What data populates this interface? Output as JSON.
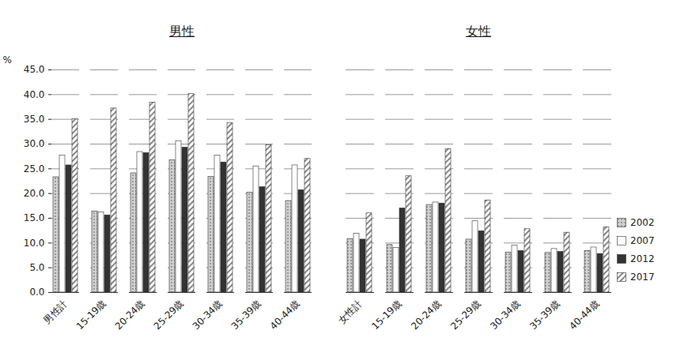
{
  "chart_data": [
    {
      "type": "bar",
      "title": "男性",
      "y_label": "%",
      "categories": [
        "男性計",
        "15-19歳",
        "20-24歳",
        "25-29歳",
        "30-34歳",
        "35-39歳",
        "40-44歳"
      ],
      "series": [
        {
          "name": "2002",
          "color": "#d0d0d0",
          "values": [
            23.3,
            16.4,
            24.1,
            26.7,
            23.4,
            20.2,
            18.5
          ]
        },
        {
          "name": "2007",
          "color": "#ffffff",
          "values": [
            27.7,
            16.2,
            28.4,
            30.6,
            27.7,
            25.5,
            25.7
          ]
        },
        {
          "name": "2012",
          "color": "#333333",
          "values": [
            25.7,
            15.6,
            28.2,
            29.3,
            26.3,
            21.3,
            20.7
          ]
        },
        {
          "name": "2017",
          "color": "#ffffff",
          "values": [
            35.0,
            37.2,
            38.4,
            40.1,
            34.2,
            29.8,
            27.0
          ]
        }
      ],
      "ylim": [
        0,
        45
      ],
      "yticks": [
        {
          "value": 0,
          "label": "0.0"
        },
        {
          "value": 5,
          "label": "5.0"
        },
        {
          "value": 10,
          "label": "10.0"
        },
        {
          "value": 15,
          "label": "15.0"
        },
        {
          "value": 20,
          "label": "20.0"
        },
        {
          "value": 25,
          "label": "25.0"
        },
        {
          "value": 30,
          "label": "30.0"
        },
        {
          "value": 35,
          "label": "35.0"
        },
        {
          "value": 40,
          "label": "40.0"
        },
        {
          "value": 45,
          "label": "45.0"
        }
      ],
      "grid": true
    },
    {
      "type": "bar",
      "title": "女性",
      "categories": [
        "女性計",
        "15-19歳",
        "20-24歳",
        "25-29歳",
        "30-34歳",
        "35-39歳",
        "40-44歳"
      ],
      "series": [
        {
          "name": "2002",
          "color": "#d0d0d0",
          "values": [
            10.8,
            9.6,
            17.7,
            10.7,
            8.1,
            8.0,
            8.4
          ]
        },
        {
          "name": "2007",
          "color": "#ffffff",
          "values": [
            11.9,
            9.0,
            18.2,
            14.4,
            9.5,
            8.8,
            9.1
          ]
        },
        {
          "name": "2012",
          "color": "#333333",
          "values": [
            10.7,
            17.0,
            18.0,
            12.4,
            8.4,
            8.2,
            7.8
          ]
        },
        {
          "name": "2017",
          "color": "#ffffff",
          "values": [
            16.0,
            23.5,
            29.0,
            18.6,
            12.8,
            12.1,
            13.2
          ]
        }
      ],
      "ylim": [
        0,
        45
      ],
      "yticks": [
        {
          "value": 0,
          "label": "0.0"
        },
        {
          "value": 5,
          "label": "5.0"
        },
        {
          "value": 10,
          "label": "10.0"
        },
        {
          "value": 15,
          "label": "15.0"
        },
        {
          "value": 20,
          "label": "20.0"
        },
        {
          "value": 25,
          "label": "25.0"
        },
        {
          "value": 30,
          "label": "30.0"
        },
        {
          "value": 35,
          "label": "35.0"
        },
        {
          "value": 40,
          "label": "40.0"
        },
        {
          "value": 45,
          "label": "45.0"
        }
      ],
      "grid": true,
      "tick_labels": "x",
      "legend": "right"
    }
  ]
}
